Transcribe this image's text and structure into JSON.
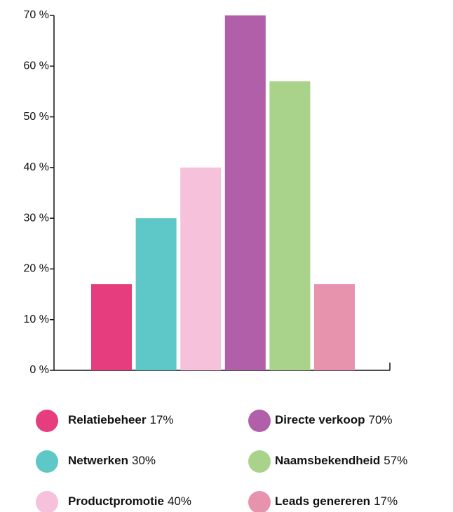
{
  "chart_data": {
    "type": "bar",
    "categories": [
      "Relatiebeheer",
      "Netwerken",
      "Productpromotie",
      "Directe verkoop",
      "Naamsbekendheid",
      "Leads genereren"
    ],
    "values": [
      17,
      30,
      40,
      70,
      57,
      17
    ],
    "value_labels": [
      "17%",
      "30%",
      "40%",
      "70%",
      "57%",
      "17%"
    ],
    "colors": [
      "#e63d7f",
      "#5ec8c8",
      "#f6c1da",
      "#b05fa8",
      "#a9d38a",
      "#e893ae"
    ],
    "ylim": [
      0,
      70
    ],
    "yticks": [
      {
        "value": 0,
        "label": "0 %"
      },
      {
        "value": 10,
        "label": "10 %"
      },
      {
        "value": 20,
        "label": "20 %"
      },
      {
        "value": 30,
        "label": "30 %"
      },
      {
        "value": 40,
        "label": "40 %"
      },
      {
        "value": 50,
        "label": "50 %"
      },
      {
        "value": 60,
        "label": "60 %"
      },
      {
        "value": 70,
        "label": "70 %"
      }
    ],
    "grid": false
  }
}
